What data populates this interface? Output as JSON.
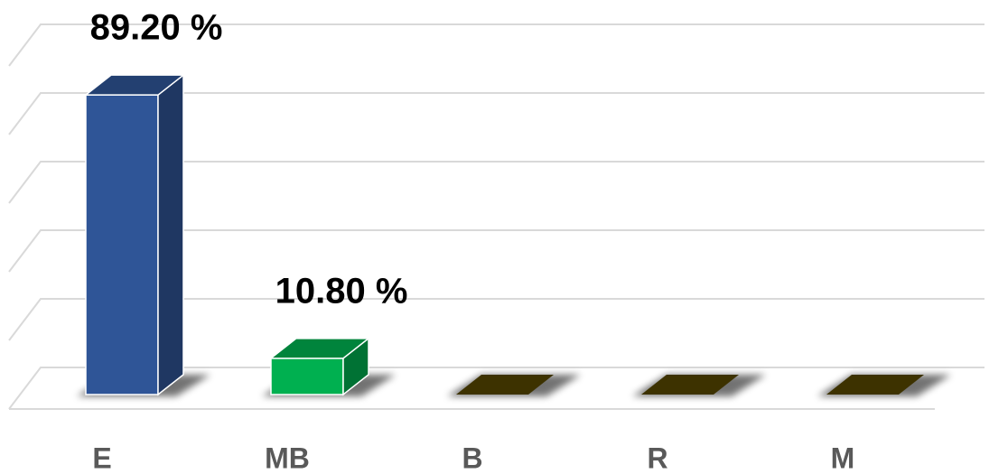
{
  "chart_data": {
    "type": "bar3d",
    "categories": [
      "E",
      "MB",
      "B",
      "R",
      "M"
    ],
    "values": [
      89.2,
      10.8,
      0,
      0,
      0
    ],
    "value_labels": [
      "89.20 %",
      "10.80 %",
      null,
      null,
      null
    ],
    "colors": [
      "#2f5597",
      "#00b050",
      "#3d3200",
      "#3d3200",
      "#3d3200"
    ],
    "ylim": [
      0,
      100
    ],
    "yticks": [
      0,
      20,
      40,
      60,
      80,
      100
    ],
    "grid": true
  }
}
